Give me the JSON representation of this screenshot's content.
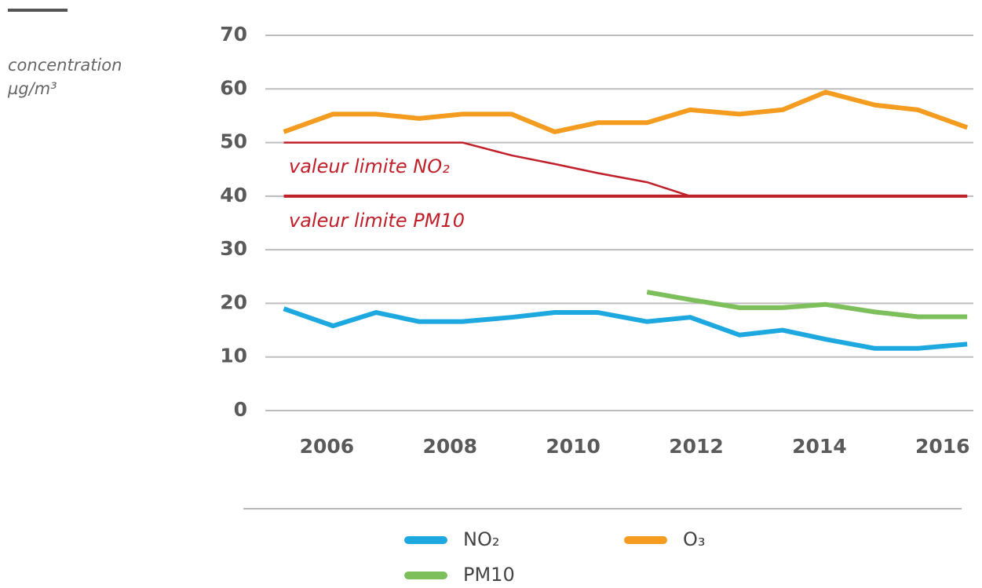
{
  "chart_data": {
    "type": "line",
    "ylabel": [
      "concentration",
      "µg/m³"
    ],
    "x": [
      2005.3,
      2006.1,
      2006.8,
      2007.5,
      2008.2,
      2009.0,
      2009.7,
      2010.4,
      2011.2,
      2011.9,
      2012.7,
      2013.4,
      2014.1,
      2014.9,
      2015.6,
      2016.4
    ],
    "series": [
      {
        "name": "NO₂",
        "color": "#1ea8e0",
        "values": [
          19,
          15.8,
          18.3,
          16.6,
          16.6,
          17.4,
          18.3,
          18.3,
          16.6,
          17.4,
          14.1,
          15,
          13.3,
          11.6,
          11.6,
          12.4
        ]
      },
      {
        "name": "O₃",
        "color": "#f39c1f",
        "values": [
          52,
          55.3,
          55.3,
          54.5,
          55.3,
          55.3,
          52,
          53.7,
          53.7,
          56.1,
          55.3,
          56.1,
          59.4,
          57,
          56.1,
          52.8
        ]
      },
      {
        "name": "PM10",
        "color": "#7dbf5a",
        "values": [
          null,
          null,
          null,
          null,
          null,
          null,
          null,
          null,
          22.1,
          20.7,
          19.2,
          19.2,
          19.8,
          18.4,
          17.5,
          17.5
        ]
      }
    ],
    "reference_lines": [
      {
        "label": "valeur limite NO₂",
        "color": "#c0202a",
        "values": [
          50,
          50,
          50,
          50,
          50,
          47.6,
          46,
          44.3,
          42.6,
          40,
          40,
          40,
          40,
          40,
          40,
          40
        ]
      },
      {
        "label": "valeur limite PM10",
        "color": "#c0202a",
        "values": [
          40,
          40,
          40,
          40,
          40,
          40,
          40,
          40,
          40,
          40,
          40,
          40,
          40,
          40,
          40,
          40
        ]
      }
    ],
    "xlim": [
      2005,
      2016.5
    ],
    "xticks": [
      2006,
      2008,
      2010,
      2012,
      2014,
      2016
    ],
    "ylim": [
      0,
      70
    ],
    "yticks": [
      0,
      10,
      20,
      30,
      40,
      50,
      60,
      70
    ],
    "grid": true
  }
}
